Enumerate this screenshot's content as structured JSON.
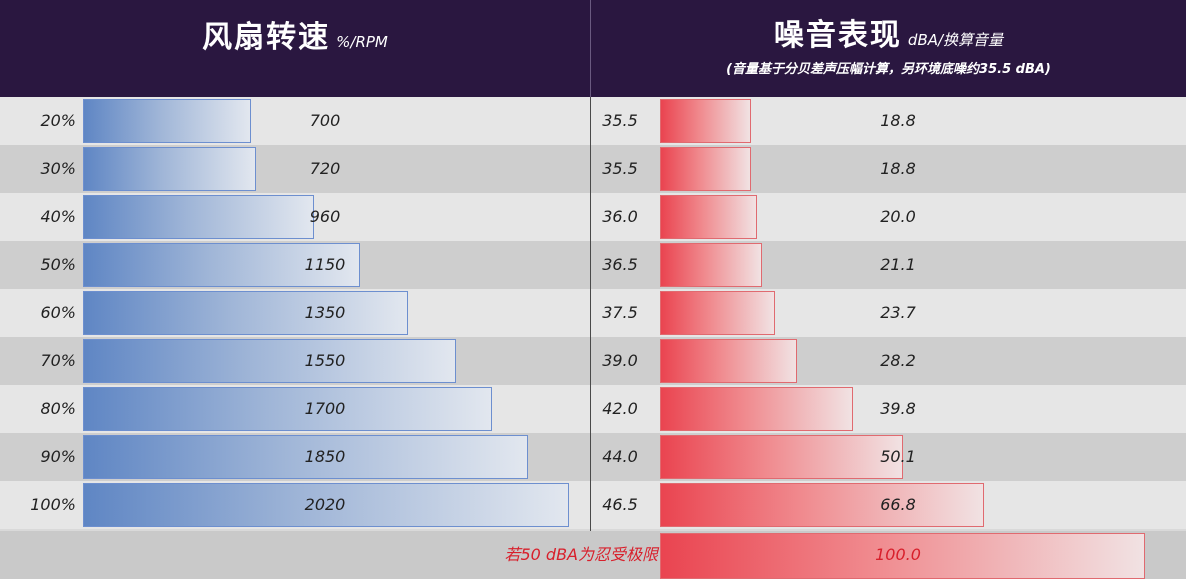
{
  "header": {
    "left_title": "风扇转速",
    "left_unit": "%/RPM",
    "right_title": "噪音表现",
    "right_unit": "dBA/换算音量",
    "right_subtitle": "(音量基于分贝差声压幅计算，另环境底噪约35.5 dBA)"
  },
  "tolerance_note": "若50 dBA为忍受极限",
  "tolerance_value": "100.0",
  "colors": {
    "header_bg": "#2a1740",
    "rpm_bar": "#5f86c4",
    "volume_bar": "#ea4450",
    "note_text": "#d8202c"
  },
  "chart_data": [
    {
      "type": "bar",
      "orientation": "horizontal",
      "categories": [
        "20%",
        "30%",
        "40%",
        "50%",
        "60%",
        "70%",
        "80%",
        "90%",
        "100%"
      ],
      "series": [
        {
          "name": "风扇转速",
          "values": [
            700,
            720,
            960,
            1150,
            1350,
            1550,
            1700,
            1850,
            2020
          ],
          "labels": [
            "700",
            "720",
            "960",
            "1150",
            "1350",
            "1550",
            "1700",
            "1850",
            "2020"
          ]
        }
      ],
      "xlim": [
        0,
        2070
      ]
    },
    {
      "type": "bar",
      "orientation": "horizontal",
      "categories": [
        "35.5",
        "35.5",
        "36.0",
        "36.5",
        "37.5",
        "39.0",
        "42.0",
        "44.0",
        "46.5"
      ],
      "series": [
        {
          "name": "换算音量",
          "values": [
            18.8,
            18.8,
            20.0,
            21.1,
            23.7,
            28.2,
            39.8,
            50.1,
            66.8
          ],
          "labels": [
            "18.8",
            "18.8",
            "20.0",
            "21.1",
            "23.7",
            "28.2",
            "39.8",
            "50.1",
            "66.8"
          ]
        }
      ],
      "reference": {
        "label": "若50 dBA为忍受极限",
        "value": 100.0
      },
      "xlim": [
        0,
        100
      ]
    }
  ]
}
